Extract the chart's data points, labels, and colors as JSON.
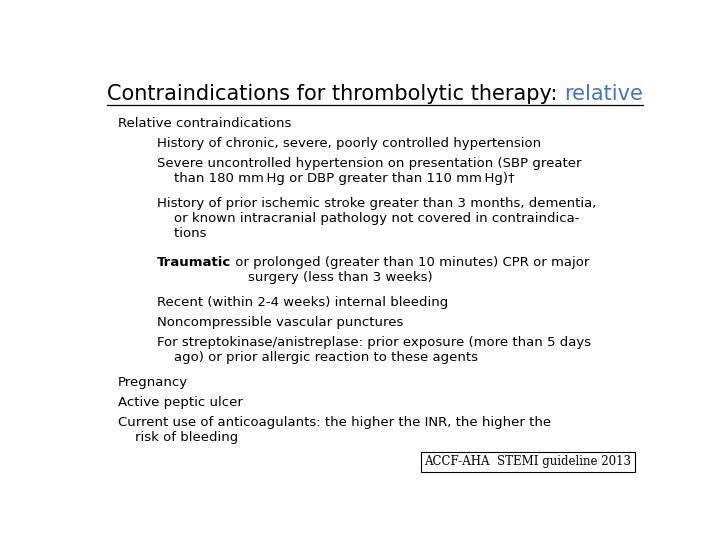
{
  "title_black": "Contraindications for thrombolytic therapy: ",
  "title_red": "relative",
  "background_color": "#ffffff",
  "title_fontsize": 15,
  "body_fontsize": 9.5,
  "header_text": "Relative contraindications",
  "items": [
    {
      "indent": 1,
      "bold_prefix": "",
      "text": "History of chronic, severe, poorly controlled hypertension"
    },
    {
      "indent": 1,
      "bold_prefix": "",
      "text": "Severe uncontrolled hypertension on presentation (SBP greater\n    than 180 mm Hg or DBP greater than 110 mm Hg)†"
    },
    {
      "indent": 1,
      "bold_prefix": "",
      "text": "History of prior ischemic stroke greater than 3 months, dementia,\n    or known intracranial pathology not covered in contraindica-\n    tions"
    },
    {
      "indent": 1,
      "bold_prefix": "Traumatic",
      "text": " or prolonged (greater than 10 minutes) CPR or major\n    surgery (less than 3 weeks)"
    },
    {
      "indent": 1,
      "bold_prefix": "",
      "text": "Recent (within 2-4 weeks) internal bleeding"
    },
    {
      "indent": 1,
      "bold_prefix": "",
      "text": "Noncompressible vascular punctures"
    },
    {
      "indent": 1,
      "bold_prefix": "",
      "text": "For streptokinase/anistreplase: prior exposure (more than 5 days\n    ago) or prior allergic reaction to these agents"
    },
    {
      "indent": 0,
      "bold_prefix": "",
      "text": "Pregnancy"
    },
    {
      "indent": 0,
      "bold_prefix": "",
      "text": "Active peptic ulcer"
    },
    {
      "indent": 0,
      "bold_prefix": "",
      "text": "Current use of anticoagulants: the higher the INR, the higher the\n    risk of bleeding"
    }
  ],
  "footer_text": "ACCF-AHA  STEMI guideline 2013",
  "footer_fontsize": 8.5,
  "title_color_black": "#000000",
  "title_color_red": "#4472C4",
  "body_color": "#000000"
}
